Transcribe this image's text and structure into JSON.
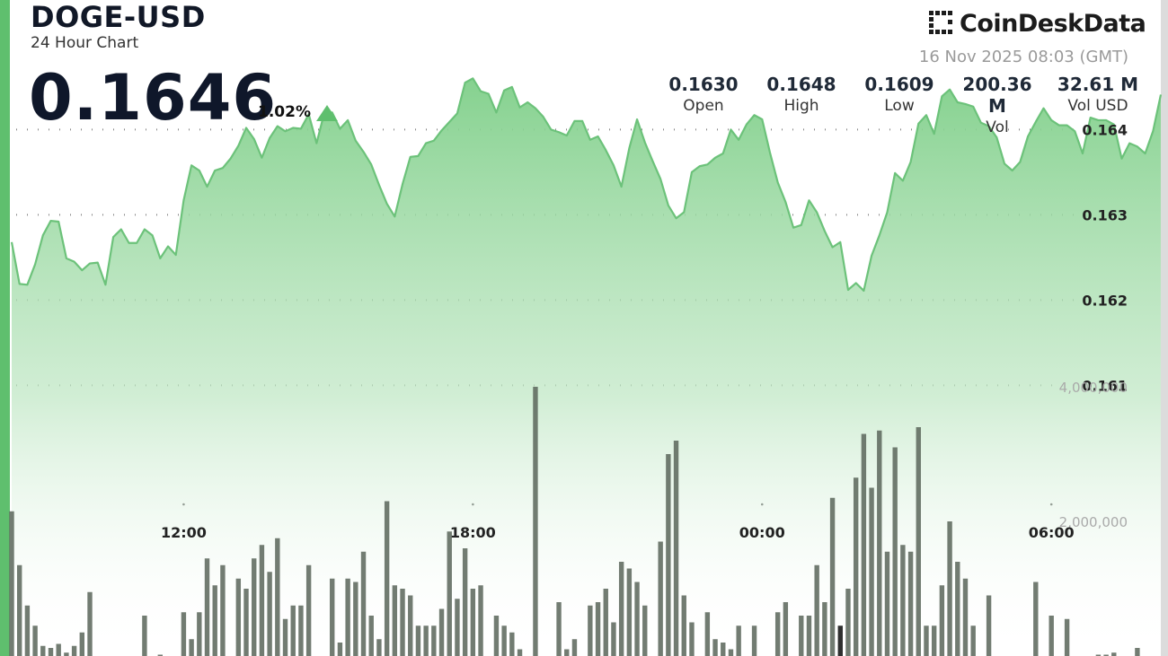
{
  "header": {
    "ticker": "DOGE-USD",
    "subtitle": "24 Hour Chart",
    "price": "0.1646",
    "change": "1.02%",
    "change_direction": "up"
  },
  "brand": {
    "name": "CoinDeskData",
    "icon": "coindesk-logo-icon"
  },
  "timestamp": "16 Nov 2025 08:03 (GMT)",
  "stats": [
    {
      "value": "0.1630",
      "label": "Open"
    },
    {
      "value": "0.1648",
      "label": "High"
    },
    {
      "value": "0.1609",
      "label": "Low"
    },
    {
      "value": "200.36 M",
      "label": "Vol"
    },
    {
      "value": "32.61 M",
      "label": "Vol USD"
    }
  ],
  "colors": {
    "line": "#6cc27a",
    "area_top": "#7fcf89",
    "volume": "#5f6a5f",
    "volume_highlight": "#2f2f2f",
    "accent": "#5fbf6e"
  },
  "chart_data": {
    "type": "line",
    "price_series": {
      "ylim": [
        0.1599,
        0.165
      ],
      "y_ticks": [
        0.161,
        0.162,
        0.163,
        0.164
      ],
      "y_tick_labels": [
        "0.161",
        "0.162",
        "0.163",
        "0.164"
      ],
      "values": [
        0.16268,
        0.16219,
        0.16218,
        0.16242,
        0.16276,
        0.16293,
        0.16292,
        0.16249,
        0.16245,
        0.16235,
        0.16243,
        0.16244,
        0.16218,
        0.16274,
        0.16283,
        0.16267,
        0.16267,
        0.16283,
        0.16276,
        0.16249,
        0.16263,
        0.16253,
        0.16317,
        0.16358,
        0.16352,
        0.16333,
        0.16352,
        0.16355,
        0.16366,
        0.16381,
        0.16402,
        0.16389,
        0.16367,
        0.1639,
        0.16404,
        0.16398,
        0.16402,
        0.16401,
        0.16418,
        0.16384,
        0.1642,
        0.1642,
        0.16401,
        0.16411,
        0.16387,
        0.16374,
        0.16359,
        0.16335,
        0.16313,
        0.16298,
        0.16336,
        0.16368,
        0.16369,
        0.16384,
        0.16387,
        0.16399,
        0.16409,
        0.16419,
        0.16455,
        0.1646,
        0.16445,
        0.16442,
        0.1642,
        0.16446,
        0.1645,
        0.16426,
        0.16432,
        0.16425,
        0.16415,
        0.164,
        0.16397,
        0.16393,
        0.1641,
        0.1641,
        0.16388,
        0.16392,
        0.16376,
        0.16358,
        0.16333,
        0.16378,
        0.16412,
        0.16385,
        0.16363,
        0.16342,
        0.16311,
        0.16296,
        0.16303,
        0.1635,
        0.16357,
        0.16359,
        0.16367,
        0.16372,
        0.164,
        0.16388,
        0.16406,
        0.16417,
        0.16412,
        0.16373,
        0.16338,
        0.16315,
        0.16285,
        0.16288,
        0.16317,
        0.16303,
        0.16281,
        0.16262,
        0.16268,
        0.16212,
        0.1622,
        0.16211,
        0.16252,
        0.16276,
        0.16303,
        0.16349,
        0.1634,
        0.16362,
        0.16407,
        0.16417,
        0.16395,
        0.16439,
        0.16447,
        0.16432,
        0.1643,
        0.16427,
        0.16408,
        0.16404,
        0.16391,
        0.1636,
        0.16352,
        0.16362,
        0.16392,
        0.16409,
        0.16425,
        0.16411,
        0.16405,
        0.16405,
        0.16398,
        0.16372,
        0.16414,
        0.16411,
        0.16411,
        0.16406,
        0.16366,
        0.16384,
        0.1638,
        0.16372,
        0.16398,
        0.16441
      ],
      "x_ticks": [
        "12:00",
        "18:00",
        "00:00",
        "06:00"
      ],
      "x_tick_index": [
        22,
        59,
        96,
        133
      ]
    },
    "volume_series": {
      "ylim": [
        0,
        5300000
      ],
      "y_ticks": [
        2000000,
        4000000
      ],
      "y_tick_labels": [
        "2,000,000",
        "4,000,000"
      ],
      "highlight_index": 106,
      "values": [
        2150000,
        1350000,
        750000,
        450000,
        150000,
        120000,
        180000,
        50000,
        150000,
        350000,
        950000,
        0,
        0,
        0,
        0,
        0,
        0,
        600000,
        0,
        20000,
        0,
        0,
        650000,
        250000,
        650000,
        1450000,
        1050000,
        1350000,
        0,
        1150000,
        1000000,
        1450000,
        1650000,
        1250000,
        1750000,
        550000,
        750000,
        750000,
        1350000,
        0,
        0,
        1150000,
        200000,
        1150000,
        1100000,
        1550000,
        600000,
        250000,
        2300000,
        1050000,
        1000000,
        900000,
        450000,
        450000,
        450000,
        700000,
        1850000,
        850000,
        1600000,
        1000000,
        1050000,
        0,
        600000,
        450000,
        350000,
        100000,
        0,
        4000000,
        0,
        0,
        800000,
        100000,
        250000,
        0,
        750000,
        800000,
        1000000,
        500000,
        1400000,
        1300000,
        1100000,
        750000,
        0,
        1700000,
        3000000,
        3200000,
        900000,
        500000,
        0,
        650000,
        250000,
        200000,
        100000,
        450000,
        0,
        450000,
        0,
        0,
        650000,
        800000,
        0,
        600000,
        600000,
        1350000,
        800000,
        2350000,
        450000,
        1000000,
        2650000,
        3300000,
        2500000,
        3350000,
        1550000,
        3100000,
        1650000,
        1550000,
        3400000,
        450000,
        450000,
        1050000,
        2000000,
        1400000,
        1150000,
        450000,
        0,
        900000,
        0,
        0,
        0,
        0,
        0,
        1100000,
        0,
        600000,
        0,
        550000,
        0,
        0,
        0,
        20000,
        20000,
        50000,
        0,
        0,
        120000
      ]
    }
  }
}
